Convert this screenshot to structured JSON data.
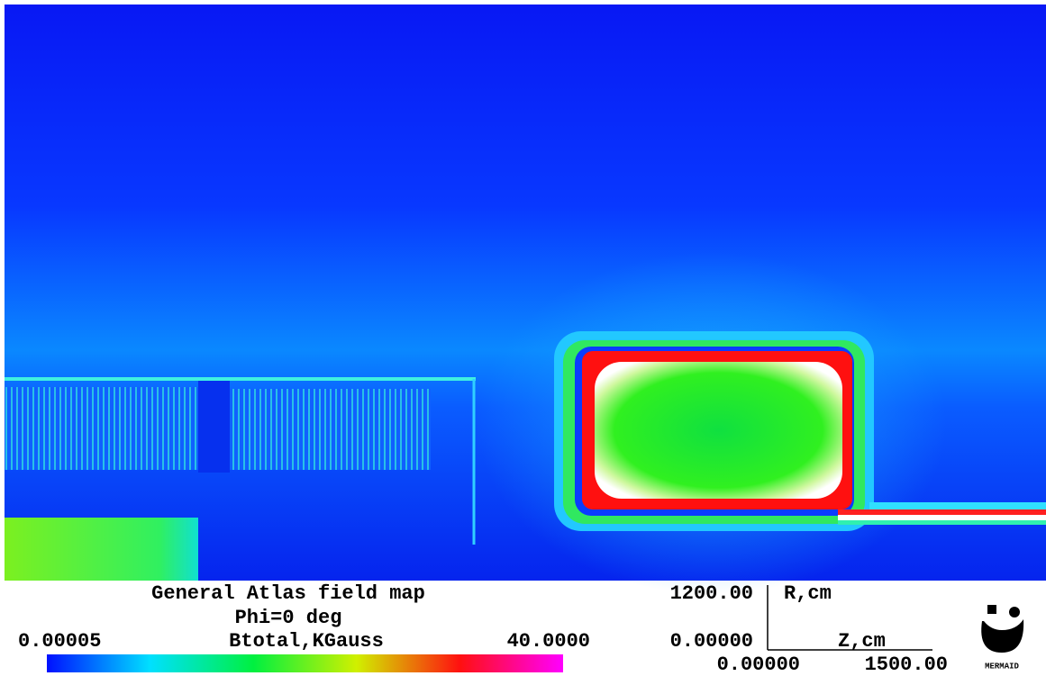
{
  "header": {
    "title": "General Atlas field map",
    "subtitle": "Phi=0 deg"
  },
  "colorbar": {
    "quantity": "Btotal,KGauss",
    "min": "0.00005",
    "max": "40.0000"
  },
  "axes": {
    "r_max": "1200.00",
    "r_label": "R,cm",
    "r_min": "0.00000",
    "z_label": "Z,cm",
    "z_min": "0.00000",
    "z_max": "1500.00"
  },
  "logo": "MERMAID"
}
